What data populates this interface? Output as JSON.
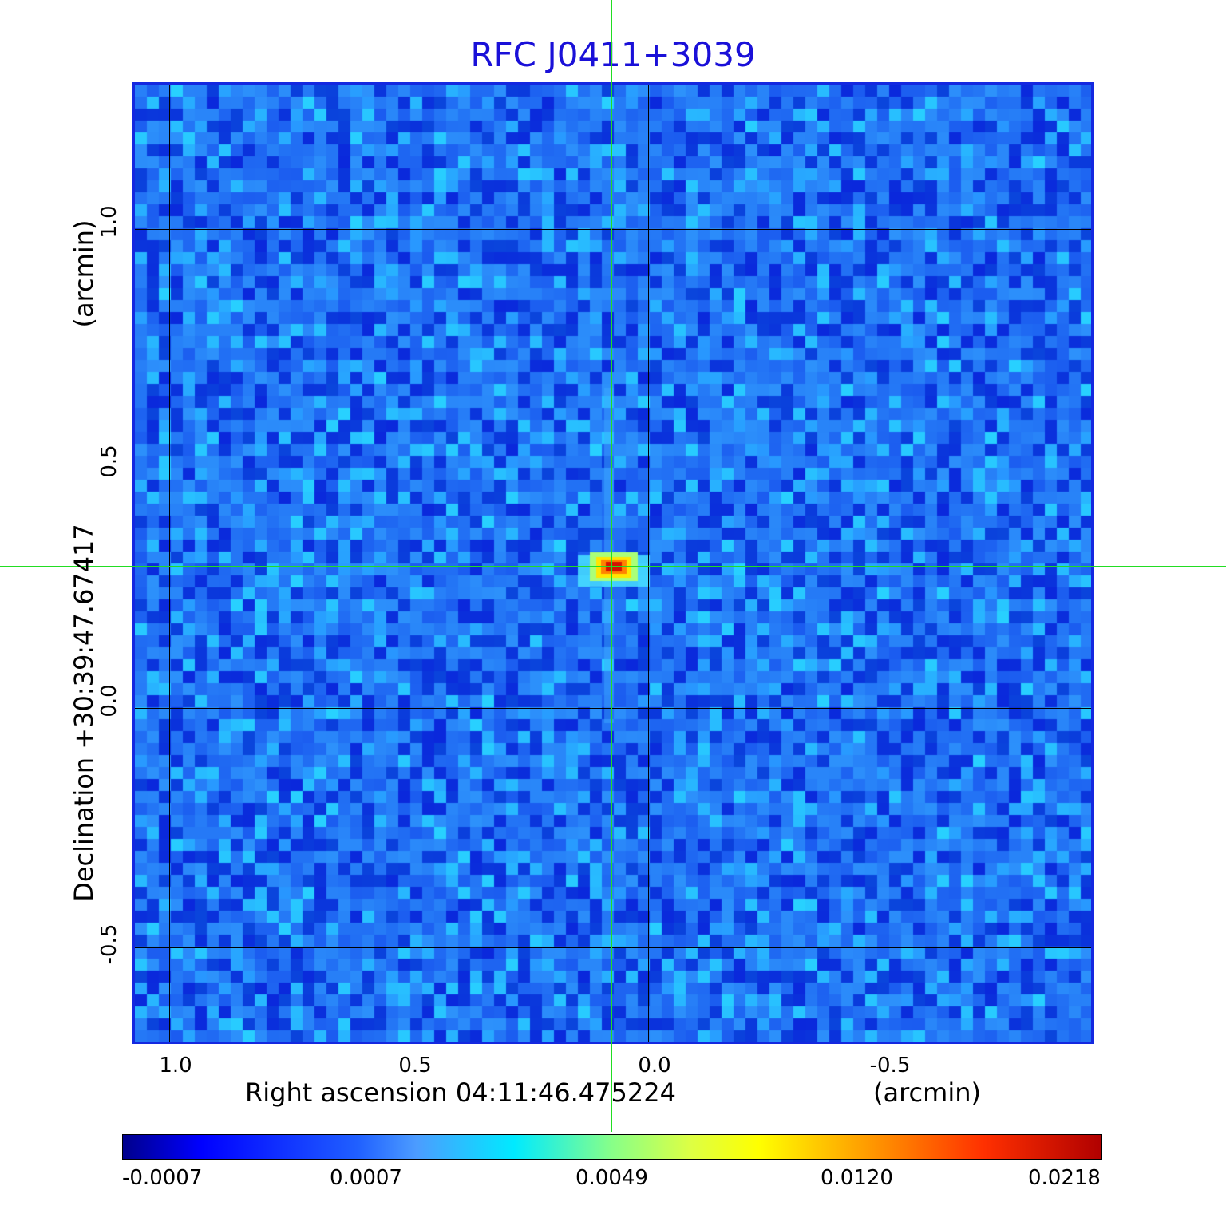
{
  "title": "RFC J0411+3039",
  "x_axis": {
    "label": "Right ascension  04:11:46.475224",
    "unit": "(arcmin)",
    "ticks": [
      "1.0",
      "0.5",
      "0.0",
      "-0.5"
    ]
  },
  "y_axis": {
    "label": "Declination  +30:39:47.67417",
    "unit": "(arcmin)",
    "ticks": [
      "1.0",
      "0.5",
      "0.0",
      "-0.5"
    ]
  },
  "colorbar": {
    "ticks": [
      "-0.0007",
      "0.0007",
      "0.0049",
      "0.0120",
      "0.0218"
    ],
    "colormap": "jet"
  },
  "colors": {
    "title": "#1a10d8",
    "frame": "#1428e0",
    "crosshair": "#22dd22",
    "grid": "#000000",
    "background_noise": "#1a5cf2"
  },
  "source": {
    "peak_value": "0.0218"
  }
}
